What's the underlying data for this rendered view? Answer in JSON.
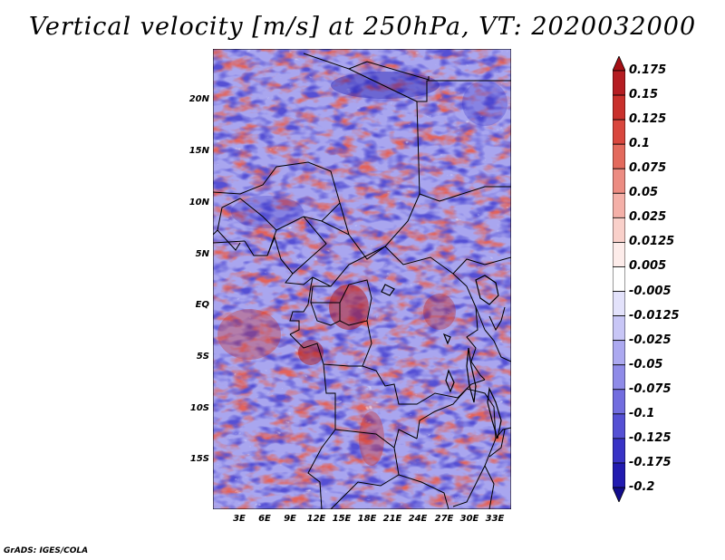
{
  "title": "Vertical velocity [m/s] at 250hPa, VT: 2020032000",
  "latitude_labels": [
    "20N",
    "15N",
    "10N",
    "5N",
    "EQ",
    "5S",
    "10S",
    "15S"
  ],
  "longitude_labels": [
    "3E",
    "6E",
    "9E",
    "12E",
    "15E",
    "18E",
    "21E",
    "24E",
    "27E",
    "30E",
    "33E"
  ],
  "colorbar": {
    "labels": [
      "0.175",
      "0.15",
      "0.125",
      "0.1",
      "0.075",
      "0.05",
      "0.025",
      "0.0125",
      "0.005",
      "-0.005",
      "-0.0125",
      "-0.025",
      "-0.05",
      "-0.075",
      "-0.1",
      "-0.125",
      "-0.175",
      "-0.2"
    ],
    "colors": [
      "#a50f15",
      "#b51d22",
      "#c9302c",
      "#d9473e",
      "#e36a5d",
      "#ec8c82",
      "#f4b0a8",
      "#f9d0ca",
      "#fdecea",
      "#ffffff",
      "#e3e2fb",
      "#c8c6f6",
      "#aca9f0",
      "#8f8be8",
      "#726ddf",
      "#5550d4",
      "#3933c6",
      "#221bb0",
      "#120c8c"
    ]
  },
  "footer": "GrADS: IGES/COLA"
}
